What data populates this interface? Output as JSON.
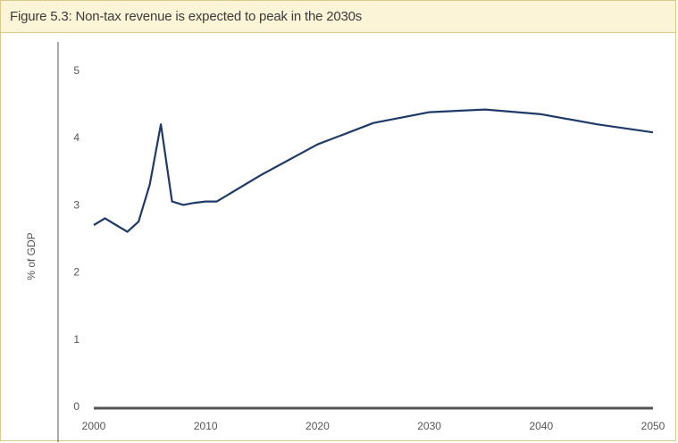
{
  "figure": {
    "title": "Figure 5.3: Non-tax revenue is expected to peak in the 2030s"
  },
  "chart_data": {
    "type": "line",
    "title": "Figure 5.3: Non-tax revenue is expected to peak in the 2030s",
    "xlabel": "",
    "ylabel": "% of GDP",
    "xlim": [
      2000,
      2050
    ],
    "ylim": [
      0,
      5
    ],
    "x_ticks": [
      2000,
      2010,
      2020,
      2030,
      2040,
      2050
    ],
    "y_ticks": [
      0,
      1,
      2,
      3,
      4,
      5
    ],
    "grid": false,
    "line_color": "#1f3a68",
    "axis_color": "#555555",
    "series": [
      {
        "x": [
          2000,
          2001,
          2002,
          2003,
          2004,
          2005,
          2006,
          2007,
          2008,
          2009,
          2010,
          2011,
          2015,
          2020,
          2025,
          2030,
          2035,
          2040,
          2045,
          2050
        ],
        "values": [
          2.7,
          2.8,
          2.7,
          2.6,
          2.75,
          3.3,
          4.2,
          3.05,
          3.0,
          3.03,
          3.05,
          3.05,
          3.45,
          3.9,
          4.22,
          4.38,
          4.42,
          4.35,
          4.2,
          4.08
        ]
      }
    ]
  }
}
